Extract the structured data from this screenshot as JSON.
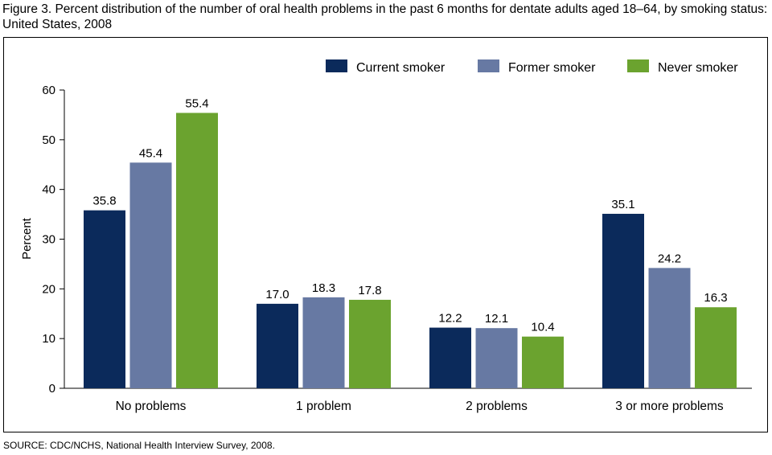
{
  "figure": {
    "title": "Figure 3. Percent distribution of the number of oral health problems in the past 6 months for dentate adults aged 18–64, by smoking status: United States, 2008",
    "source": "SOURCE: CDC/NCHS, National Health Interview Survey, 2008."
  },
  "colors": {
    "current": "#0b2a5b",
    "former": "#6779a3",
    "never": "#6ba32f"
  },
  "chart_data": {
    "type": "bar",
    "title": "Figure 3. Percent distribution of the number of oral health problems in the past 6 months for dentate adults aged 18–64, by smoking status: United States, 2008",
    "xlabel": "",
    "ylabel": "Percent",
    "ylim": [
      0,
      60
    ],
    "yticks": [
      0,
      10,
      20,
      30,
      40,
      50,
      60
    ],
    "categories": [
      "No problems",
      "1 problem",
      "2 problems",
      "3 or more problems"
    ],
    "series": [
      {
        "name": "Current smoker",
        "color": "#0b2a5b",
        "values": [
          35.8,
          17.0,
          12.2,
          35.1
        ],
        "labels": [
          "35.8",
          "17.0",
          "12.2",
          "35.1"
        ]
      },
      {
        "name": "Former smoker",
        "color": "#6779a3",
        "values": [
          45.4,
          18.3,
          12.1,
          24.2
        ],
        "labels": [
          "45.4",
          "18.3",
          "12.1",
          "24.2"
        ]
      },
      {
        "name": "Never smoker",
        "color": "#6ba32f",
        "values": [
          55.4,
          17.8,
          10.4,
          16.3
        ],
        "labels": [
          "55.4",
          "17.8",
          "10.4",
          "16.3"
        ]
      }
    ],
    "legend_position": "top-right",
    "grid": false
  }
}
